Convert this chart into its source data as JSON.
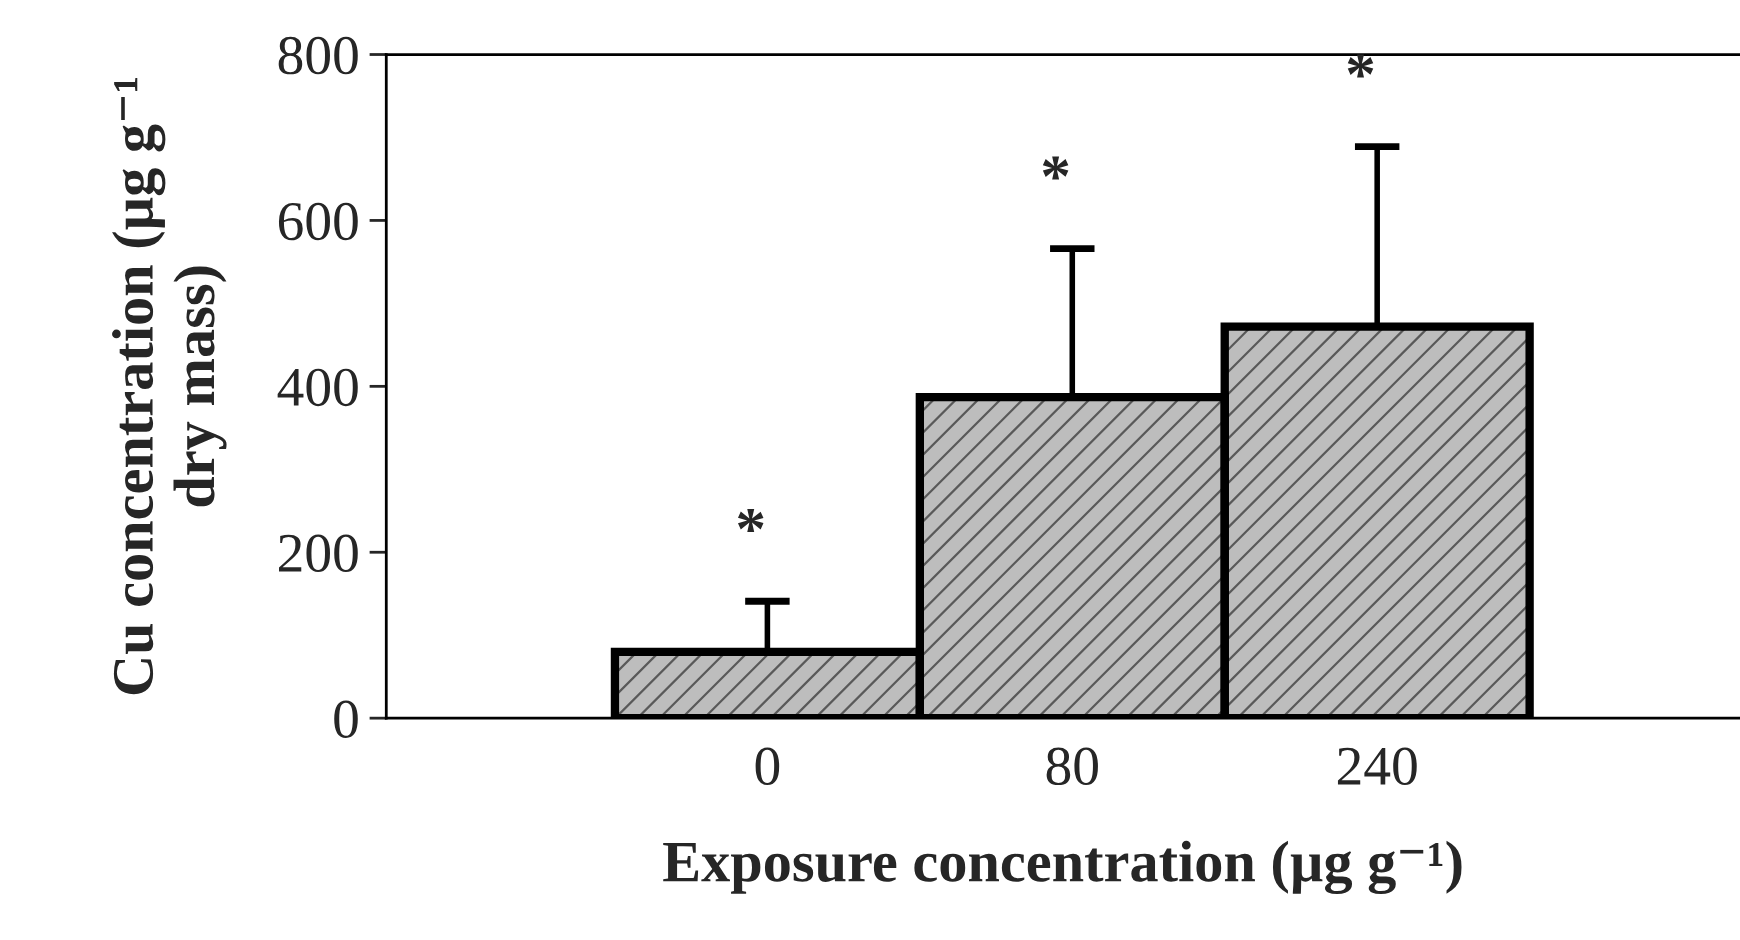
{
  "chart_data": {
    "type": "bar",
    "xlabel": "Exposure concentration (µg g⁻¹)",
    "ylabel": "Cu concentration (µg g⁻¹\ndry mass)",
    "categories": [
      "0",
      "80",
      "240"
    ],
    "values": [
      80,
      387,
      472
    ],
    "errors": [
      61,
      179,
      217
    ],
    "color": "#bdbdbd",
    "ylim": [
      0,
      800
    ],
    "yticks": [
      0,
      200,
      400,
      600,
      800
    ],
    "grid": false,
    "annotations": [
      {
        "text": "*",
        "x": "0",
        "y": 141
      },
      {
        "text": "*",
        "x": "80",
        "y": 566
      },
      {
        "text": "*",
        "x": "240",
        "y": 689
      }
    ]
  }
}
